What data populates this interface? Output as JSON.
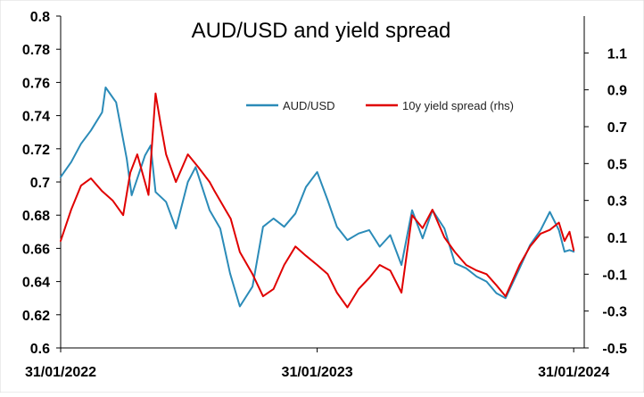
{
  "chart_data": {
    "type": "line",
    "title": "AUD/USD and yield spread",
    "x_axis": {
      "range": [
        "2022-01-31",
        "2024-02-15"
      ],
      "tick_labels": [
        "31/01/2022",
        "31/01/2023",
        "31/01/2024"
      ],
      "tick_dates": [
        "2022-01-31",
        "2023-01-31",
        "2024-01-31"
      ]
    },
    "y_left": {
      "range": [
        0.6,
        0.8
      ],
      "ticks": [
        0.6,
        0.62,
        0.64,
        0.66,
        0.68,
        0.7,
        0.72,
        0.74,
        0.76,
        0.78,
        0.8
      ],
      "tick_labels": [
        "0.6",
        "0.62",
        "0.64",
        "0.66",
        "0.68",
        "0.7",
        "0.72",
        "0.74",
        "0.76",
        "0.78",
        "0.8"
      ]
    },
    "y_right": {
      "range": [
        -0.5,
        1.3
      ],
      "ticks": [
        -0.5,
        -0.3,
        -0.1,
        0.1,
        0.3,
        0.5,
        0.7,
        0.9,
        1.1
      ],
      "tick_labels": [
        "-0.5",
        "-0.3",
        "-0.1",
        "0.1",
        "0.3",
        "0.5",
        "0.7",
        "0.9",
        "1.1"
      ]
    },
    "grid": false,
    "legend_position": "top-right",
    "series": [
      {
        "name": "AUD/USD",
        "axis": "left",
        "color": "#2b8bb8",
        "points": [
          [
            "2022-01-31",
            0.703
          ],
          [
            "2022-02-15",
            0.712
          ],
          [
            "2022-03-01",
            0.723
          ],
          [
            "2022-03-15",
            0.731
          ],
          [
            "2022-03-31",
            0.742
          ],
          [
            "2022-04-05",
            0.757
          ],
          [
            "2022-04-20",
            0.748
          ],
          [
            "2022-05-05",
            0.714
          ],
          [
            "2022-05-12",
            0.692
          ],
          [
            "2022-05-31",
            0.716
          ],
          [
            "2022-06-08",
            0.722
          ],
          [
            "2022-06-15",
            0.694
          ],
          [
            "2022-06-30",
            0.688
          ],
          [
            "2022-07-14",
            0.672
          ],
          [
            "2022-07-31",
            0.7
          ],
          [
            "2022-08-11",
            0.709
          ],
          [
            "2022-08-31",
            0.683
          ],
          [
            "2022-09-15",
            0.672
          ],
          [
            "2022-09-29",
            0.645
          ],
          [
            "2022-10-13",
            0.625
          ],
          [
            "2022-10-31",
            0.637
          ],
          [
            "2022-11-15",
            0.673
          ],
          [
            "2022-11-30",
            0.678
          ],
          [
            "2022-12-15",
            0.673
          ],
          [
            "2022-12-31",
            0.681
          ],
          [
            "2023-01-15",
            0.697
          ],
          [
            "2023-01-31",
            0.706
          ],
          [
            "2023-02-15",
            0.689
          ],
          [
            "2023-02-28",
            0.673
          ],
          [
            "2023-03-15",
            0.665
          ],
          [
            "2023-03-31",
            0.669
          ],
          [
            "2023-04-15",
            0.671
          ],
          [
            "2023-04-30",
            0.661
          ],
          [
            "2023-05-15",
            0.668
          ],
          [
            "2023-05-31",
            0.65
          ],
          [
            "2023-06-15",
            0.683
          ],
          [
            "2023-06-30",
            0.666
          ],
          [
            "2023-07-14",
            0.683
          ],
          [
            "2023-07-31",
            0.672
          ],
          [
            "2023-08-15",
            0.651
          ],
          [
            "2023-08-31",
            0.648
          ],
          [
            "2023-09-15",
            0.643
          ],
          [
            "2023-09-29",
            0.64
          ],
          [
            "2023-10-13",
            0.633
          ],
          [
            "2023-10-26",
            0.63
          ],
          [
            "2023-11-15",
            0.648
          ],
          [
            "2023-11-30",
            0.662
          ],
          [
            "2023-12-15",
            0.671
          ],
          [
            "2023-12-28",
            0.682
          ],
          [
            "2024-01-10",
            0.671
          ],
          [
            "2024-01-18",
            0.658
          ],
          [
            "2024-01-25",
            0.659
          ],
          [
            "2024-01-31",
            0.658
          ]
        ]
      },
      {
        "name": "10y yield spread (rhs)",
        "axis": "right",
        "color": "#e00000",
        "points": [
          [
            "2022-01-31",
            0.08
          ],
          [
            "2022-02-15",
            0.25
          ],
          [
            "2022-03-01",
            0.38
          ],
          [
            "2022-03-15",
            0.42
          ],
          [
            "2022-03-31",
            0.35
          ],
          [
            "2022-04-15",
            0.3
          ],
          [
            "2022-04-30",
            0.22
          ],
          [
            "2022-05-10",
            0.45
          ],
          [
            "2022-05-20",
            0.55
          ],
          [
            "2022-06-05",
            0.33
          ],
          [
            "2022-06-15",
            0.88
          ],
          [
            "2022-06-22",
            0.72
          ],
          [
            "2022-06-30",
            0.55
          ],
          [
            "2022-07-14",
            0.4
          ],
          [
            "2022-07-31",
            0.55
          ],
          [
            "2022-08-15",
            0.48
          ],
          [
            "2022-08-31",
            0.4
          ],
          [
            "2022-09-07",
            0.35
          ],
          [
            "2022-09-30",
            0.2
          ],
          [
            "2022-10-13",
            0.02
          ],
          [
            "2022-10-31",
            -0.1
          ],
          [
            "2022-11-15",
            -0.22
          ],
          [
            "2022-11-30",
            -0.18
          ],
          [
            "2022-12-15",
            -0.05
          ],
          [
            "2022-12-31",
            0.05
          ],
          [
            "2023-01-15",
            0.0
          ],
          [
            "2023-01-31",
            -0.05
          ],
          [
            "2023-02-15",
            -0.1
          ],
          [
            "2023-02-28",
            -0.2
          ],
          [
            "2023-03-15",
            -0.28
          ],
          [
            "2023-03-31",
            -0.18
          ],
          [
            "2023-04-15",
            -0.12
          ],
          [
            "2023-04-30",
            -0.05
          ],
          [
            "2023-05-15",
            -0.08
          ],
          [
            "2023-05-31",
            -0.2
          ],
          [
            "2023-06-15",
            0.22
          ],
          [
            "2023-06-30",
            0.15
          ],
          [
            "2023-07-14",
            0.25
          ],
          [
            "2023-07-31",
            0.1
          ],
          [
            "2023-08-15",
            0.02
          ],
          [
            "2023-08-31",
            -0.05
          ],
          [
            "2023-09-15",
            -0.08
          ],
          [
            "2023-09-29",
            -0.1
          ],
          [
            "2023-10-13",
            -0.16
          ],
          [
            "2023-10-26",
            -0.22
          ],
          [
            "2023-11-15",
            -0.05
          ],
          [
            "2023-11-30",
            0.05
          ],
          [
            "2023-12-15",
            0.12
          ],
          [
            "2023-12-28",
            0.14
          ],
          [
            "2024-01-10",
            0.18
          ],
          [
            "2024-01-18",
            0.08
          ],
          [
            "2024-01-25",
            0.13
          ],
          [
            "2024-01-31",
            0.03
          ]
        ]
      }
    ]
  }
}
